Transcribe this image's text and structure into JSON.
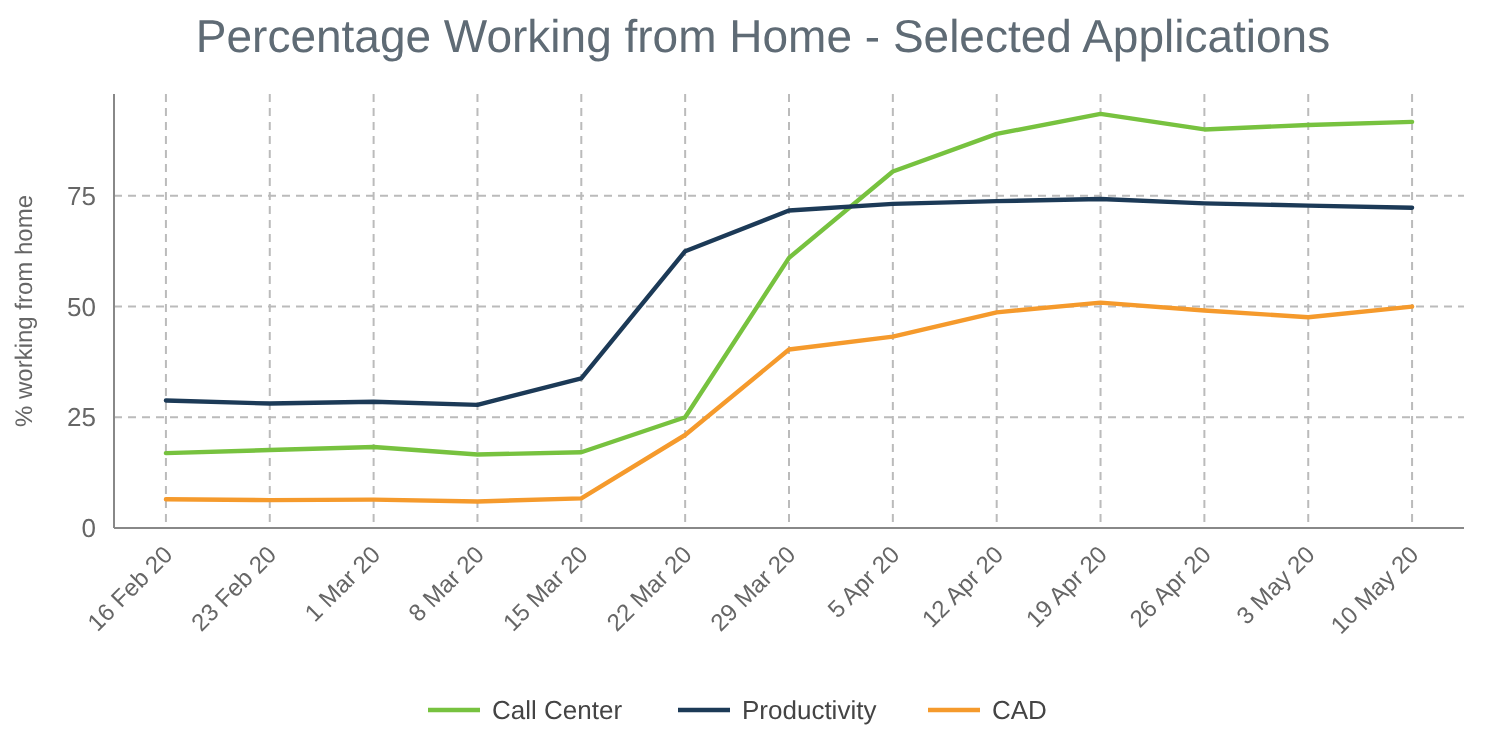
{
  "chart_data": {
    "type": "line",
    "title": "Percentage Working from Home - Selected Applications",
    "ylabel": "% working from home",
    "categories": [
      "16 Feb 20",
      "23 Feb 20",
      "1 Mar 20",
      "8 Mar 20",
      "15 Mar 20",
      "22 Mar 20",
      "29 Mar 20",
      "5 Apr 20",
      "12 Apr 20",
      "19 Apr 20",
      "26 Apr 20",
      "3 May 20",
      "10 May 20"
    ],
    "series": [
      {
        "name": "Call Center",
        "color": "#77c23f",
        "values": [
          16.9,
          17.6,
          18.3,
          16.6,
          17.1,
          25,
          61,
          80.5,
          89,
          93.5,
          90,
          91,
          91.7
        ]
      },
      {
        "name": "Productivity",
        "color": "#1c3a57",
        "values": [
          28.8,
          28.1,
          28.5,
          27.8,
          33.8,
          62.5,
          71.7,
          73.2,
          73.8,
          74.3,
          73.3,
          72.8,
          72.3
        ]
      },
      {
        "name": "CAD",
        "color": "#f59a2c",
        "values": [
          6.5,
          6.3,
          6.4,
          6.0,
          6.7,
          21,
          40.3,
          43.2,
          48.7,
          50.9,
          49.1,
          47.6,
          50.0
        ]
      }
    ],
    "ylim": [
      0,
      98
    ],
    "yticks": [
      0,
      25,
      50,
      75
    ],
    "grid": true,
    "legend": "bottom",
    "marker": "none",
    "line_style": "solid"
  }
}
